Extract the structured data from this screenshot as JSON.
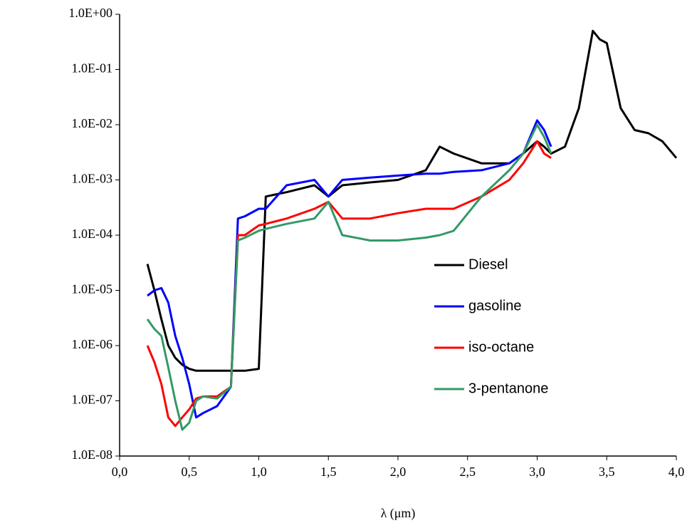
{
  "chart_data": {
    "type": "line",
    "x_label": "λ (μm)",
    "log_y": true,
    "grid": false,
    "legend": "right",
    "xlim": [
      0,
      4
    ],
    "ylim": [
      1e-08,
      1
    ],
    "xticks": [
      {
        "value": 0,
        "label": "0,0"
      },
      {
        "value": 0.5,
        "label": "0,5"
      },
      {
        "value": 1,
        "label": "1,0"
      },
      {
        "value": 1.5,
        "label": "1,5"
      },
      {
        "value": 2,
        "label": "2,0"
      },
      {
        "value": 2.5,
        "label": "2,5"
      },
      {
        "value": 3,
        "label": "3,0"
      },
      {
        "value": 3.5,
        "label": "3,5"
      },
      {
        "value": 4,
        "label": "4,0"
      }
    ],
    "yticks": [
      {
        "value": 1,
        "label": "1.0E+00"
      },
      {
        "value": 0.1,
        "label": "1.0E-01"
      },
      {
        "value": 0.01,
        "label": "1.0E-02"
      },
      {
        "value": 0.001,
        "label": "1.0E-03"
      },
      {
        "value": 0.0001,
        "label": "1.0E-04"
      },
      {
        "value": 1e-05,
        "label": "1.0E-05"
      },
      {
        "value": 1e-06,
        "label": "1.0E-06"
      },
      {
        "value": 1e-07,
        "label": "1.0E-07"
      },
      {
        "value": 1e-08,
        "label": "1.0E-08"
      }
    ],
    "x": [
      0.2,
      0.25,
      0.3,
      0.35,
      0.4,
      0.45,
      0.5,
      0.55,
      0.6,
      0.7,
      0.8,
      0.85,
      0.9,
      1.0,
      1.05,
      1.2,
      1.4,
      1.5,
      1.6,
      1.8,
      2.0,
      2.2,
      2.3,
      2.4,
      2.6,
      2.8,
      2.9,
      3.0,
      3.05,
      3.1,
      3.2,
      3.3,
      3.4,
      3.45,
      3.5,
      3.6,
      3.7,
      3.8,
      3.9,
      4.0
    ],
    "series": [
      {
        "name": "Diesel",
        "color": "#000000",
        "values": [
          3e-05,
          1e-05,
          3e-06,
          1e-06,
          6e-07,
          4.5e-07,
          3.8e-07,
          3.5e-07,
          3.5e-07,
          3.5e-07,
          3.5e-07,
          3.5e-07,
          3.5e-07,
          3.8e-07,
          0.0005,
          0.0006,
          0.0008,
          0.0005,
          0.0008,
          0.0009,
          0.001,
          0.0015,
          0.004,
          0.003,
          0.002,
          0.002,
          0.003,
          0.005,
          0.004,
          0.003,
          0.004,
          0.02,
          0.5,
          0.35,
          0.3,
          0.02,
          0.008,
          0.007,
          0.005,
          0.0025
        ]
      },
      {
        "name": "gasoline",
        "color": "#0000ff",
        "values": [
          8e-06,
          1e-05,
          1.1e-05,
          6e-06,
          1.5e-06,
          6e-07,
          2e-07,
          5e-08,
          6e-08,
          8e-08,
          1.8e-07,
          0.0002,
          0.00022,
          0.0003,
          0.0003,
          0.0008,
          0.001,
          0.0005,
          0.001,
          0.0011,
          0.0012,
          0.0013,
          0.0013,
          0.0014,
          0.0015,
          0.002,
          0.003,
          0.012,
          0.008,
          0.004,
          null,
          null,
          null,
          null,
          null,
          null,
          null,
          null,
          null,
          null
        ]
      },
      {
        "name": "iso-octane",
        "color": "#ff0000",
        "values": [
          1e-06,
          5e-07,
          2e-07,
          5e-08,
          3.5e-08,
          5e-08,
          7e-08,
          1.1e-07,
          1.2e-07,
          1.2e-07,
          1.8e-07,
          0.0001,
          0.0001,
          0.00015,
          0.00016,
          0.0002,
          0.0003,
          0.0004,
          0.0002,
          0.0002,
          0.00025,
          0.0003,
          0.0003,
          0.0003,
          0.0005,
          0.001,
          0.002,
          0.005,
          0.003,
          0.0025,
          null,
          null,
          null,
          null,
          null,
          null,
          null,
          null,
          null,
          null
        ]
      },
      {
        "name": "3-pentanone",
        "color": "#339966",
        "values": [
          3e-06,
          2e-06,
          1.5e-06,
          4e-07,
          1e-07,
          3e-08,
          4e-08,
          1e-07,
          1.2e-07,
          1.1e-07,
          1.8e-07,
          8e-05,
          9e-05,
          0.00012,
          0.00013,
          0.00016,
          0.0002,
          0.0004,
          0.0001,
          8e-05,
          8e-05,
          9e-05,
          0.0001,
          0.00012,
          0.0005,
          0.0015,
          0.003,
          0.01,
          0.006,
          0.003,
          null,
          null,
          null,
          null,
          null,
          null,
          null,
          null,
          null,
          null
        ]
      }
    ]
  }
}
